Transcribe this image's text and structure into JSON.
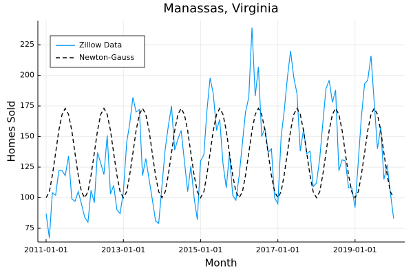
{
  "chart_data": {
    "type": "line",
    "title": "Manassas, Virginia",
    "x_label": "Month",
    "y_label": "Homes Sold",
    "x": [
      "2011-01-01",
      "2011-02-01",
      "2011-03-01",
      "2011-04-01",
      "2011-05-01",
      "2011-06-01",
      "2011-07-01",
      "2011-08-01",
      "2011-09-01",
      "2011-10-01",
      "2011-11-01",
      "2011-12-01",
      "2012-01-01",
      "2012-02-01",
      "2012-03-01",
      "2012-04-01",
      "2012-05-01",
      "2012-06-01",
      "2012-07-01",
      "2012-08-01",
      "2012-09-01",
      "2012-10-01",
      "2012-11-01",
      "2012-12-01",
      "2013-01-01",
      "2013-02-01",
      "2013-03-01",
      "2013-04-01",
      "2013-05-01",
      "2013-06-01",
      "2013-07-01",
      "2013-08-01",
      "2013-09-01",
      "2013-10-01",
      "2013-11-01",
      "2013-12-01",
      "2014-01-01",
      "2014-02-01",
      "2014-03-01",
      "2014-04-01",
      "2014-05-01",
      "2014-06-01",
      "2014-07-01",
      "2014-08-01",
      "2014-09-01",
      "2014-10-01",
      "2014-11-01",
      "2014-12-01",
      "2015-01-01",
      "2015-02-01",
      "2015-03-01",
      "2015-04-01",
      "2015-05-01",
      "2015-06-01",
      "2015-07-01",
      "2015-08-01",
      "2015-09-01",
      "2015-10-01",
      "2015-11-01",
      "2015-12-01",
      "2016-01-01",
      "2016-02-01",
      "2016-03-01",
      "2016-04-01",
      "2016-05-01",
      "2016-06-01",
      "2016-07-01",
      "2016-08-01",
      "2016-09-01",
      "2016-10-01",
      "2016-11-01",
      "2016-12-01",
      "2017-01-01",
      "2017-02-01",
      "2017-03-01",
      "2017-04-01",
      "2017-05-01",
      "2017-06-01",
      "2017-07-01",
      "2017-08-01",
      "2017-09-01",
      "2017-10-01",
      "2017-11-01",
      "2017-12-01",
      "2018-01-01",
      "2018-02-01",
      "2018-03-01",
      "2018-04-01",
      "2018-05-01",
      "2018-06-01",
      "2018-07-01",
      "2018-08-01",
      "2018-09-01",
      "2018-10-01",
      "2018-11-01",
      "2018-12-01",
      "2019-01-01",
      "2019-02-01",
      "2019-03-01",
      "2019-04-01",
      "2019-05-01",
      "2019-06-01",
      "2019-07-01",
      "2019-08-01",
      "2019-09-01",
      "2019-10-01",
      "2019-11-01",
      "2019-12-01",
      "2020-01-01"
    ],
    "series": [
      {
        "name": "Zillow Data",
        "color": "#009af9",
        "dash": "solid",
        "values": [
          87,
          67,
          104,
          102,
          122,
          122,
          118,
          134,
          99,
          97,
          105,
          95,
          84,
          80,
          106,
          96,
          137,
          128,
          119,
          151,
          103,
          110,
          90,
          87,
          105,
          145,
          160,
          182,
          170,
          172,
          118,
          132,
          115,
          99,
          81,
          79,
          110,
          140,
          158,
          175,
          139,
          148,
          155,
          130,
          105,
          126,
          100,
          82,
          130,
          135,
          170,
          198,
          185,
          155,
          164,
          128,
          108,
          136,
          102,
          98,
          118,
          145,
          170,
          182,
          239,
          183,
          207,
          150,
          157,
          137,
          140,
          100,
          95,
          150,
          170,
          198,
          220,
          198,
          185,
          138,
          156,
          136,
          138,
          109,
          112,
          132,
          160,
          189,
          196,
          178,
          188,
          122,
          131,
          130,
          108,
          108,
          92,
          130,
          165,
          193,
          196,
          216,
          178,
          140,
          158,
          115,
          127,
          104,
          83
        ]
      },
      {
        "name": "Newton-Gauss",
        "color": "#000000",
        "dash": "dashed",
        "values": [
          100,
          104.9,
          118.3,
          136.5,
          154.8,
          168.1,
          173,
          168.1,
          154.8,
          136.5,
          118.3,
          104.9,
          100,
          104.9,
          118.3,
          136.5,
          154.8,
          168.1,
          173,
          168.1,
          154.8,
          136.5,
          118.3,
          104.9,
          100,
          104.9,
          118.3,
          136.5,
          154.8,
          168.1,
          173,
          168.1,
          154.8,
          136.5,
          118.3,
          104.9,
          100,
          104.9,
          118.3,
          136.5,
          154.8,
          168.1,
          173,
          168.1,
          154.8,
          136.5,
          118.3,
          104.9,
          100,
          104.9,
          118.3,
          136.5,
          154.8,
          168.1,
          173,
          168.1,
          154.8,
          136.5,
          118.3,
          104.9,
          100,
          104.9,
          118.3,
          136.5,
          154.8,
          168.1,
          173,
          168.1,
          154.8,
          136.5,
          118.3,
          104.9,
          100,
          104.9,
          118.3,
          136.5,
          154.8,
          168.1,
          173,
          168.1,
          154.8,
          136.5,
          118.3,
          104.9,
          100,
          104.9,
          118.3,
          136.5,
          154.8,
          168.1,
          173,
          168.1,
          154.8,
          136.5,
          118.3,
          104.9,
          100,
          104.9,
          118.3,
          136.5,
          154.8,
          168.1,
          173,
          168.1,
          154.8,
          136.5,
          118.3,
          104.9,
          100
        ]
      }
    ],
    "xlim": [
      "2010-10-15",
      "2020-04-15"
    ],
    "xticks": [
      "2011-01-01",
      "2013-01-01",
      "2015-01-01",
      "2017-01-01",
      "2019-01-01"
    ],
    "ylim": [
      63.8,
      244.7
    ],
    "yticks": [
      75,
      100,
      125,
      150,
      175,
      200,
      225
    ],
    "grid": true,
    "legend": "top-left"
  }
}
